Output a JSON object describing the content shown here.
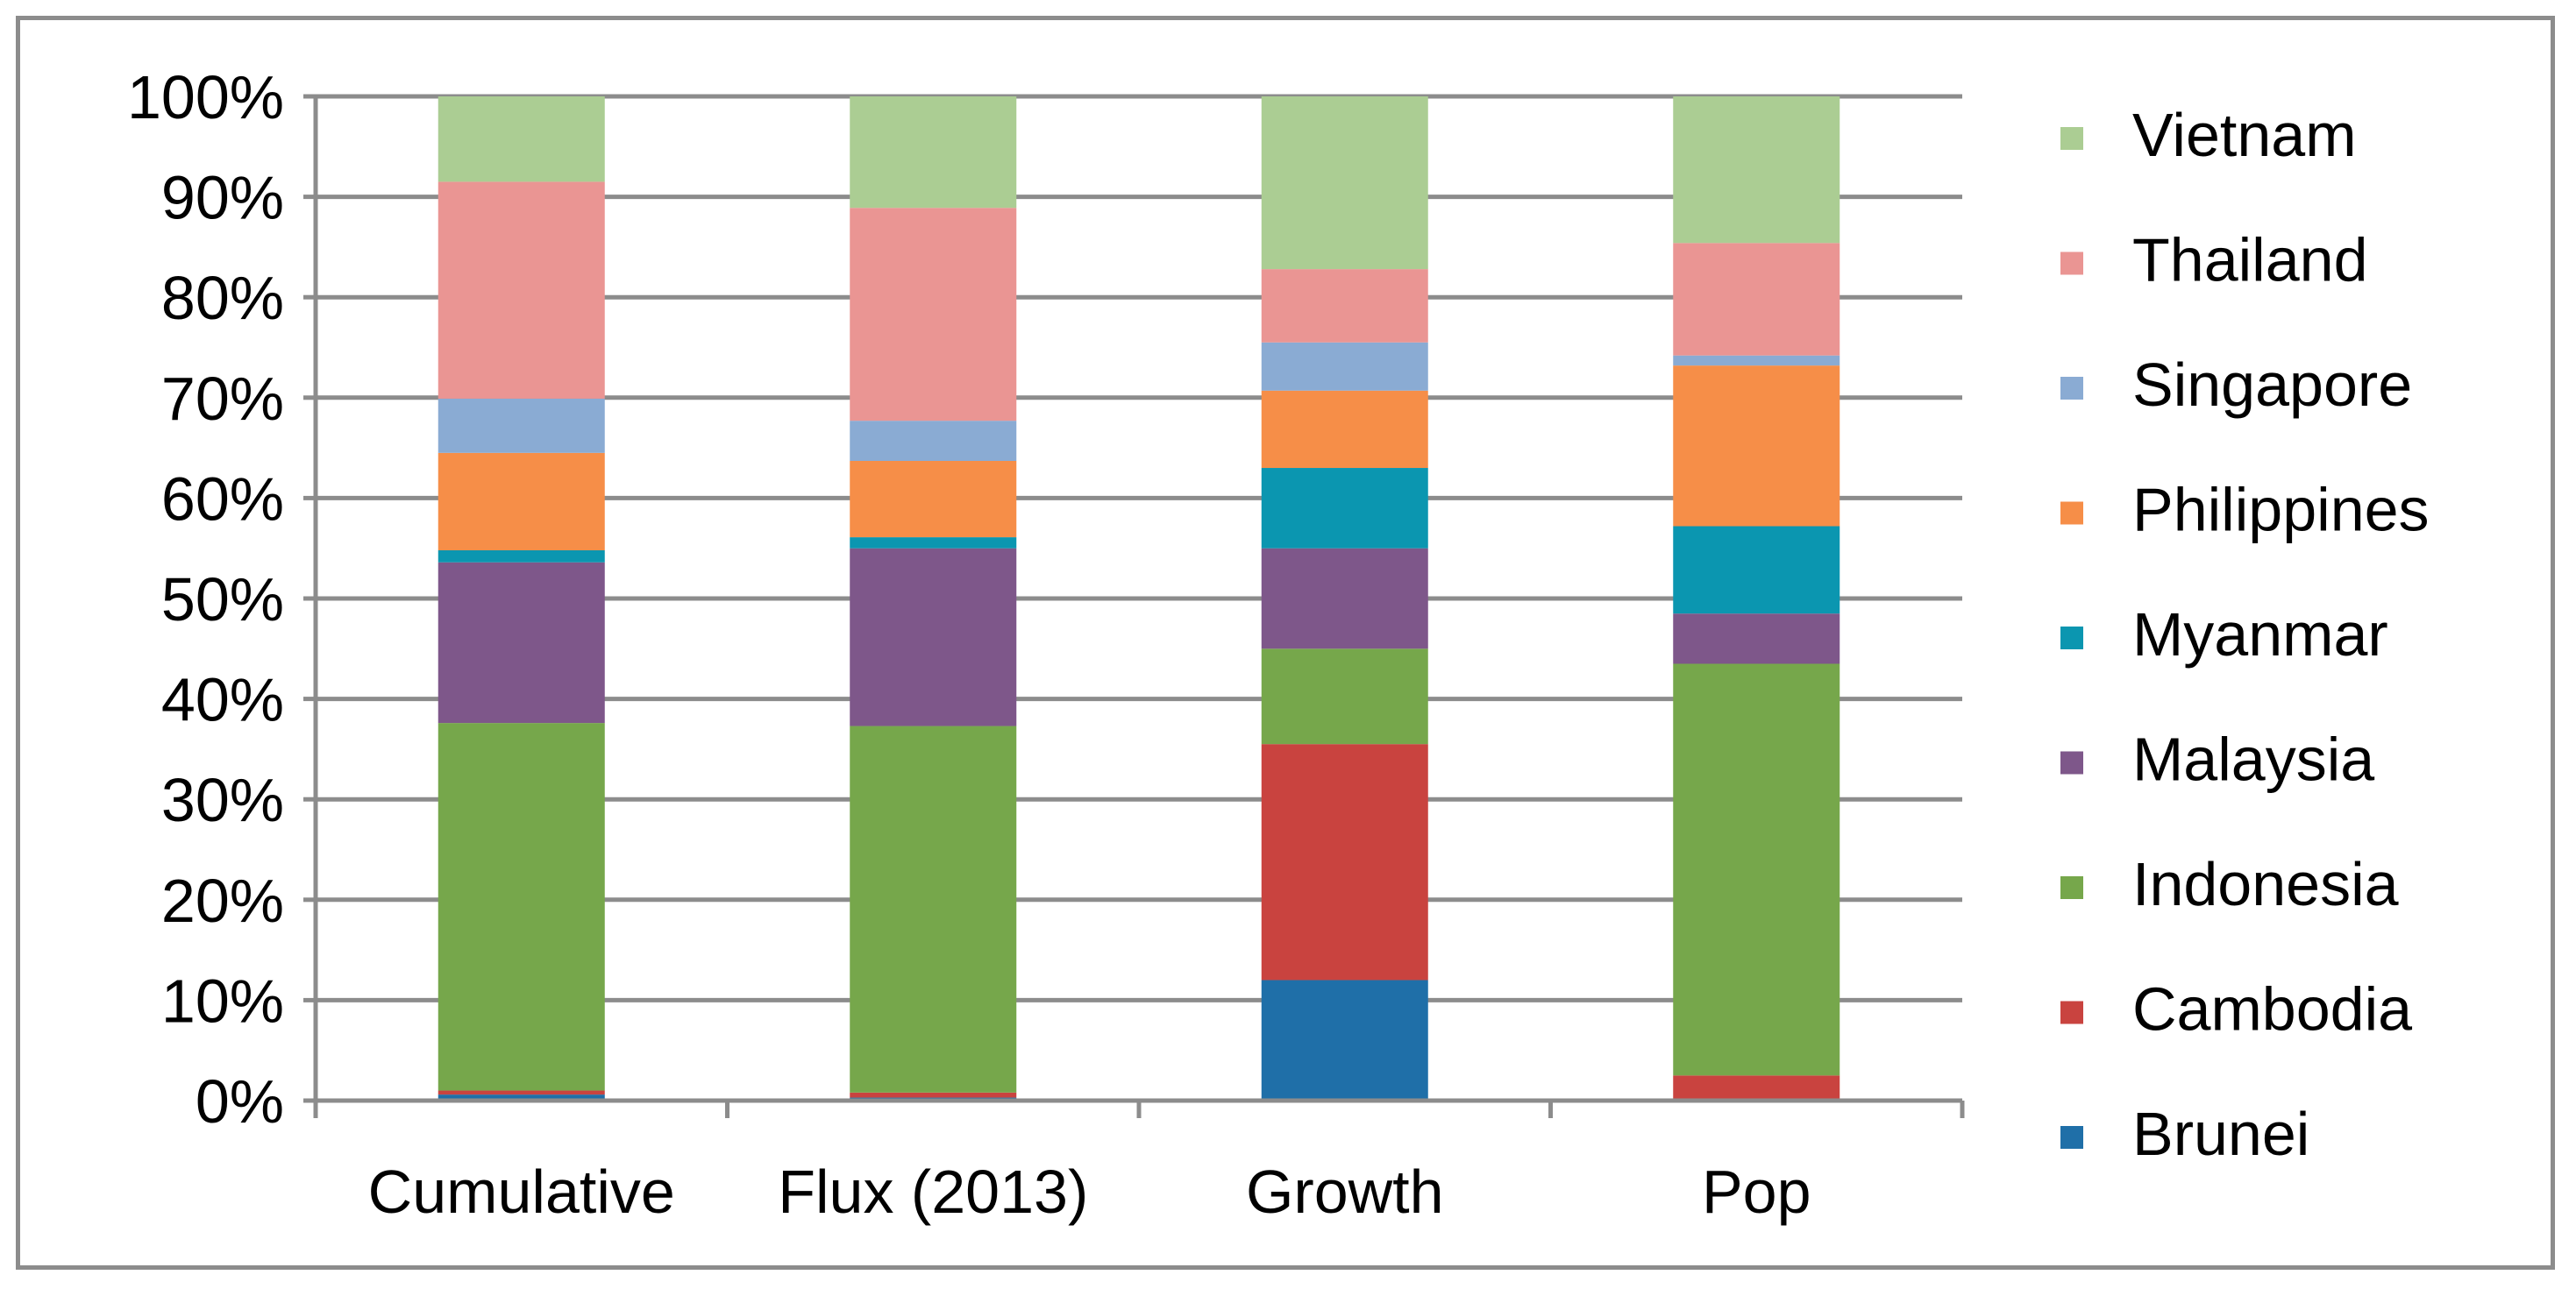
{
  "chart_data": {
    "type": "bar",
    "stacked": true,
    "categories": [
      "Cumulative",
      "Flux (2013)",
      "Growth",
      "Pop"
    ],
    "y_tick_labels": [
      "0%",
      "10%",
      "20%",
      "30%",
      "40%",
      "50%",
      "60%",
      "70%",
      "80%",
      "90%",
      "100%"
    ],
    "ylim": [
      0,
      100
    ],
    "grid": true,
    "legend_position": "right",
    "series": [
      {
        "name": "Brunei",
        "color": "#1f6fa8",
        "values": [
          0.6,
          0.3,
          12.0,
          0.0
        ]
      },
      {
        "name": "Cambodia",
        "color": "#c9433f",
        "values": [
          0.4,
          0.5,
          23.5,
          2.5
        ]
      },
      {
        "name": "Indonesia",
        "color": "#76a74b",
        "values": [
          36.6,
          36.5,
          9.5,
          41.0
        ]
      },
      {
        "name": "Malaysia",
        "color": "#7e578a",
        "values": [
          16.0,
          17.7,
          10.0,
          5.0
        ]
      },
      {
        "name": "Myanmar",
        "color": "#0b96b0",
        "values": [
          1.2,
          1.1,
          8.0,
          8.7
        ]
      },
      {
        "name": "Philippines",
        "color": "#f68e48",
        "values": [
          9.7,
          7.6,
          7.7,
          16.0
        ]
      },
      {
        "name": "Singapore",
        "color": "#8aabd3",
        "values": [
          5.4,
          4.0,
          4.8,
          1.0
        ]
      },
      {
        "name": "Thailand",
        "color": "#ea9593",
        "values": [
          21.6,
          21.2,
          7.3,
          11.2
        ]
      },
      {
        "name": "Vietnam",
        "color": "#abcd93",
        "values": [
          8.5,
          11.1,
          17.2,
          14.6
        ]
      }
    ]
  }
}
